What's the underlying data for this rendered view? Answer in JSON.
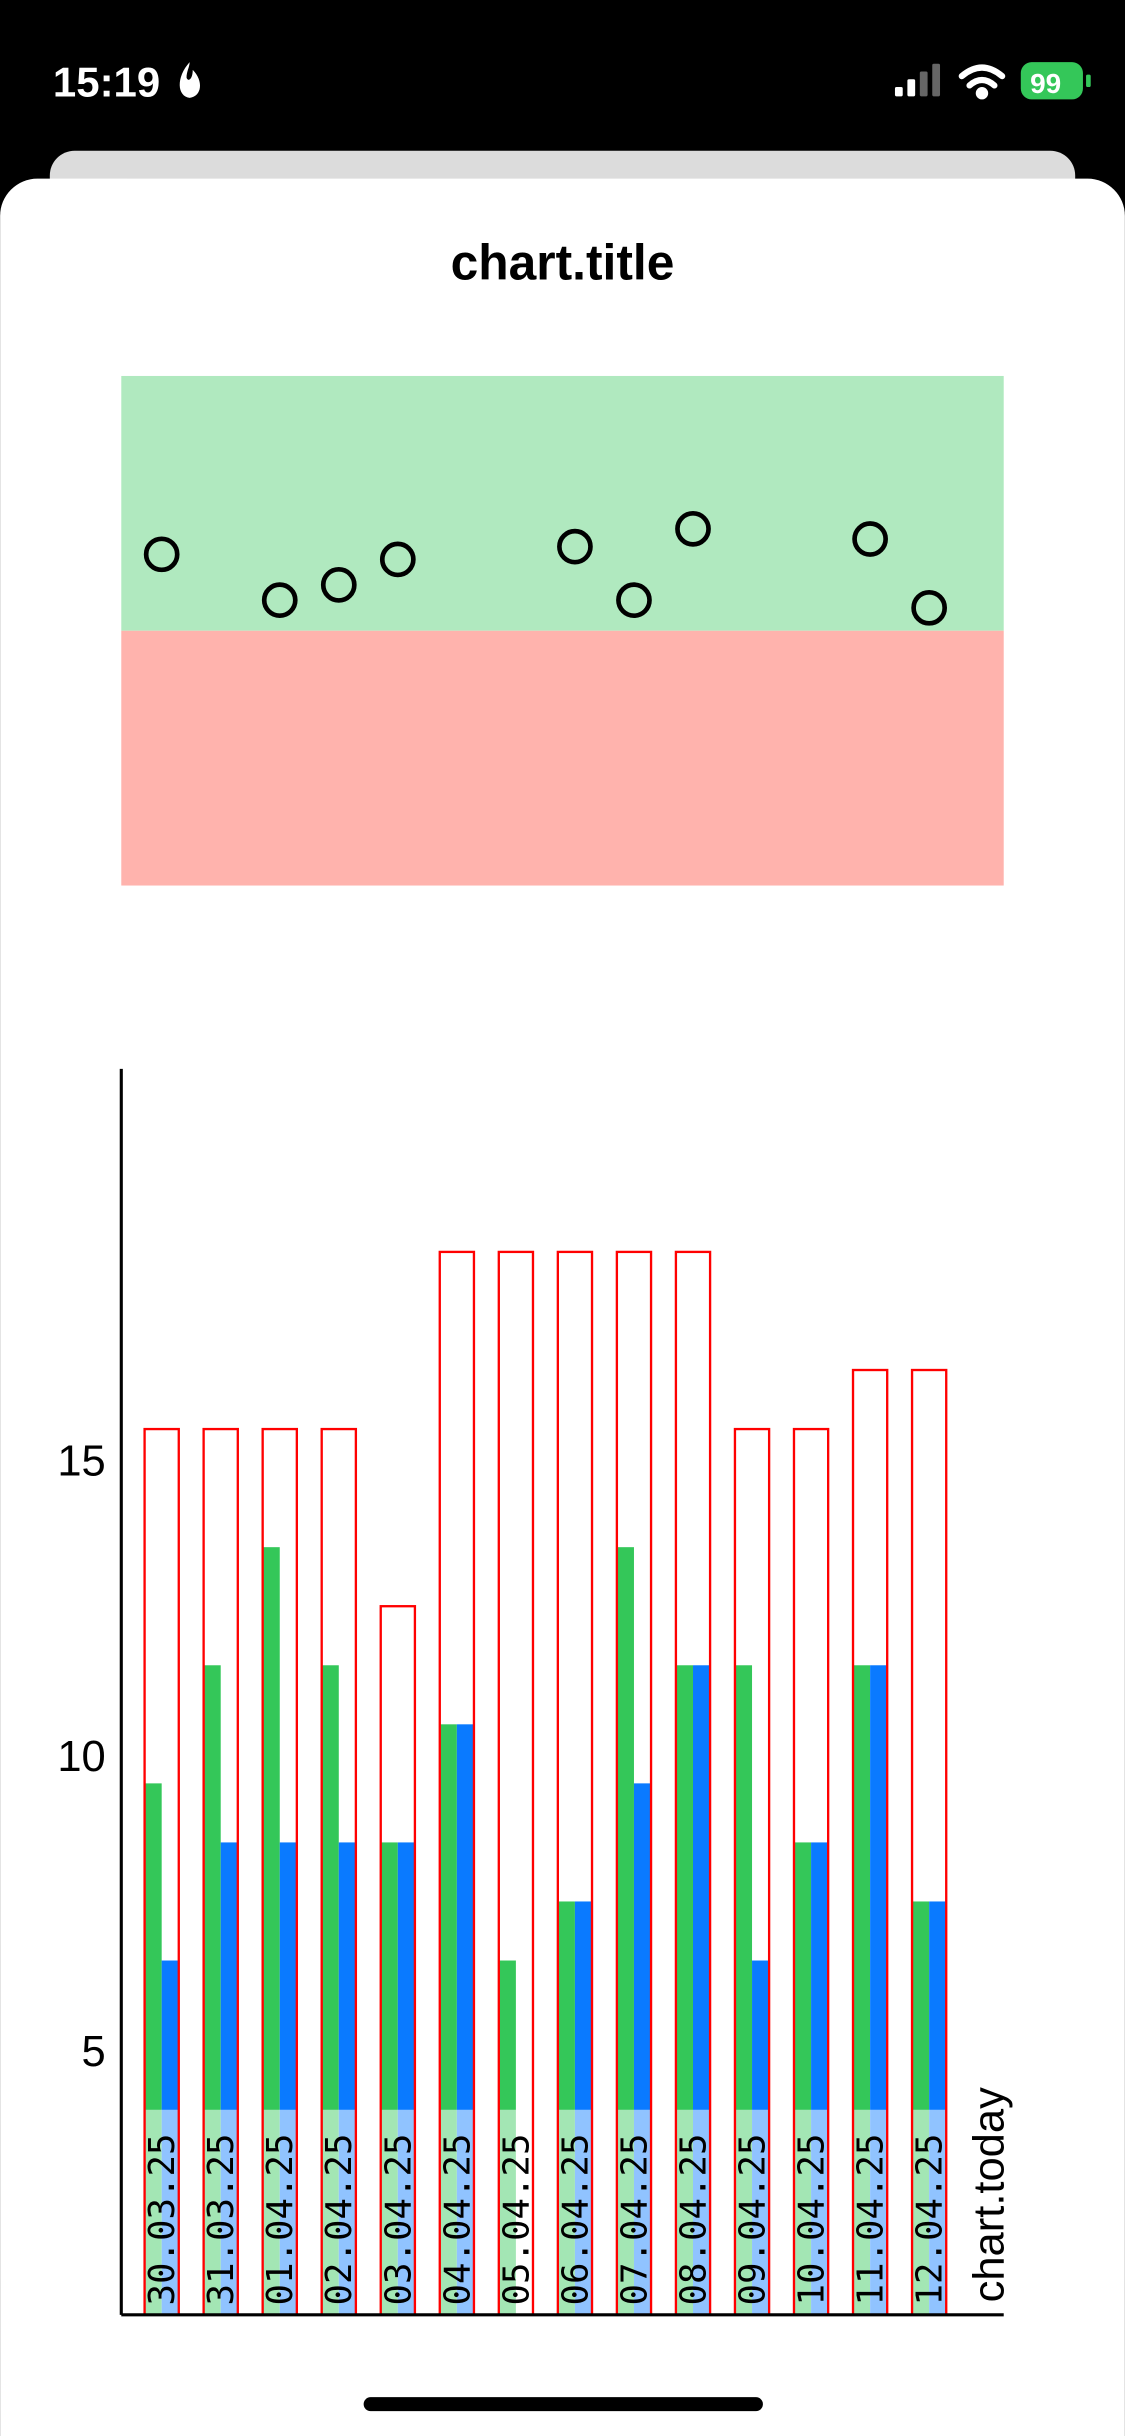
{
  "status_bar": {
    "time": "15:19",
    "battery": "99"
  },
  "chart_data": [
    {
      "type": "scatter",
      "title": "chart.title",
      "x": [
        "30.03.25",
        "31.03.25",
        "01.04.25",
        "02.04.25",
        "03.04.25",
        "04.04.25",
        "05.04.25",
        "06.04.25",
        "07.04.25",
        "08.04.25",
        "09.04.25",
        "10.04.25",
        "11.04.25",
        "12.04.25"
      ],
      "values": [
        1.3,
        null,
        1.12,
        1.18,
        1.28,
        null,
        null,
        1.33,
        1.12,
        1.4,
        null,
        null,
        1.36,
        1.09
      ],
      "color": "#000000",
      "ylim": [
        0,
        2
      ],
      "bands": [
        {
          "from": 1,
          "to": 2,
          "color": "#b0e9bf"
        },
        {
          "from": 0,
          "to": 1,
          "color": "#ffb3ad"
        }
      ]
    },
    {
      "type": "bar",
      "annotation": "chart.today",
      "categories": [
        "30.03.25",
        "31.03.25",
        "01.04.25",
        "02.04.25",
        "03.04.25",
        "04.04.25",
        "05.04.25",
        "06.04.25",
        "07.04.25",
        "08.04.25",
        "09.04.25",
        "10.04.25",
        "11.04.25",
        "12.04.25"
      ],
      "series": [
        {
          "color": "#ff0000",
          "values": [
            15.5,
            15.5,
            15.5,
            15.5,
            12.5,
            18.5,
            18.5,
            18.5,
            18.5,
            18.5,
            15.5,
            15.5,
            16.5,
            16.5
          ]
        },
        {
          "color": "#34c759",
          "values": [
            9.5,
            11.5,
            13.5,
            11.5,
            8.5,
            10.5,
            6.5,
            7.5,
            13.5,
            11.5,
            11.5,
            8.5,
            11.5,
            7.5
          ]
        },
        {
          "color": "#0a7aff",
          "values": [
            6.5,
            8.5,
            8.5,
            8.5,
            8.5,
            10.5,
            null,
            7.5,
            9.5,
            11.5,
            6.5,
            8.5,
            11.5,
            7.5
          ]
        }
      ],
      "ylim": [
        0.5,
        21.6
      ],
      "yticks": [
        5,
        10,
        15
      ]
    }
  ]
}
